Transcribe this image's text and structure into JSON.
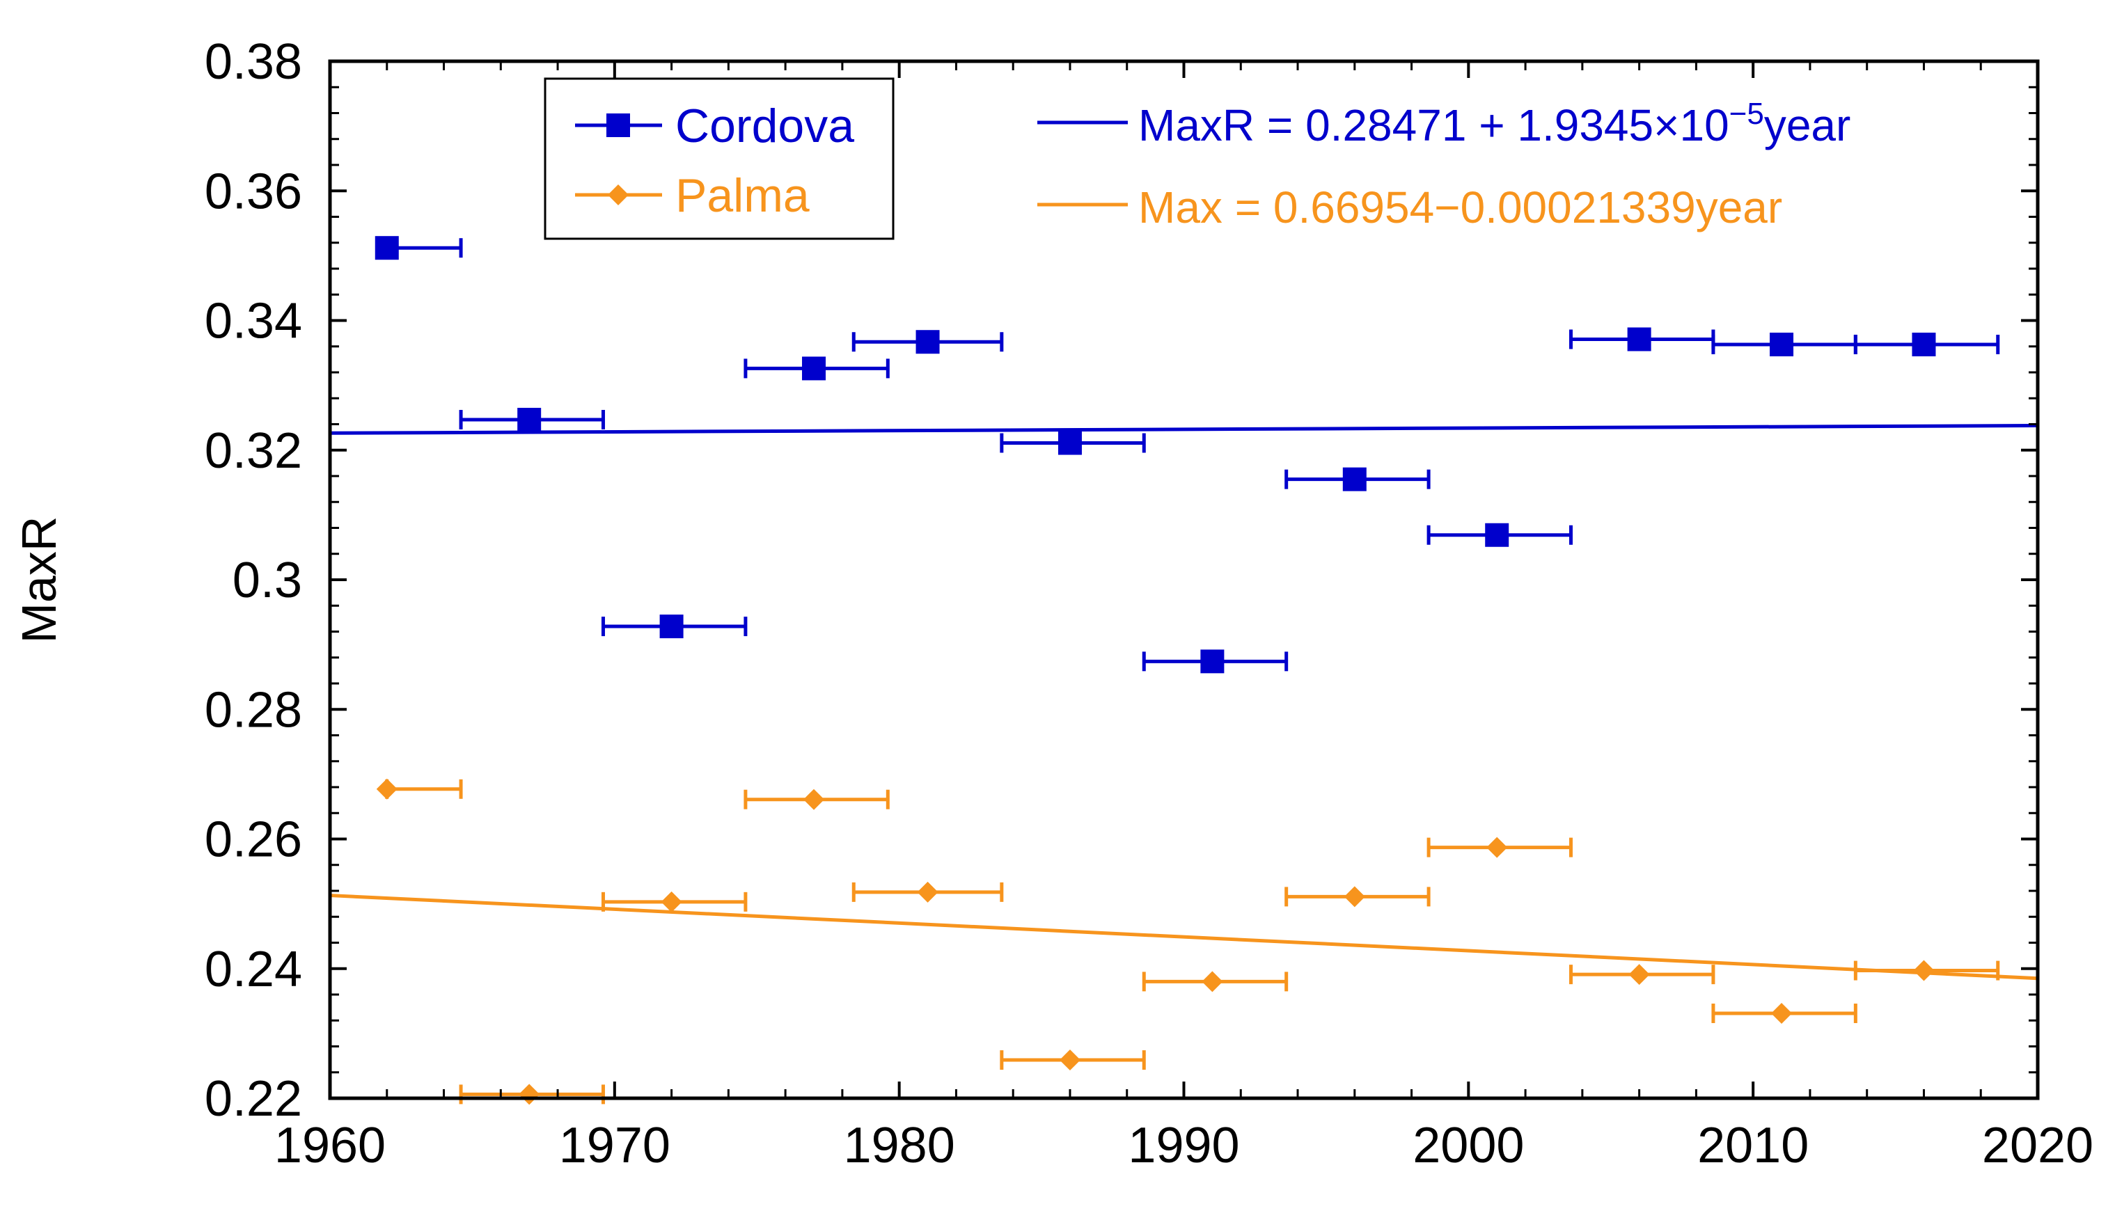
{
  "chart_data": {
    "type": "scatter",
    "title": "",
    "xlabel": "",
    "ylabel": "MaxR",
    "xlim": [
      1960,
      2020
    ],
    "ylim": [
      0.22,
      0.38
    ],
    "x_ticks": [
      1960,
      1970,
      1980,
      1990,
      2000,
      2010,
      2020
    ],
    "x_tick_labels": [
      "1960",
      "1970",
      "1980",
      "1990",
      "2000",
      "2010",
      "2020"
    ],
    "y_ticks": [
      0.22,
      0.24,
      0.26,
      0.28,
      0.3,
      0.32,
      0.34,
      0.36,
      0.38
    ],
    "y_tick_labels": [
      "0.22",
      "0.24",
      "0.26",
      "0.28",
      "0.3",
      "0.32",
      "0.34",
      "0.36",
      "0.38"
    ],
    "x_minor_step": 2,
    "y_minor_step": 0.004,
    "grid": false,
    "legend_position": "top-left",
    "series": [
      {
        "name": "Cordova",
        "color": "#0000cc",
        "marker": "square",
        "x": [
          1962,
          1967,
          1972,
          1977,
          1981,
          1986,
          1991,
          1996,
          2001,
          2006,
          2011,
          2016
        ],
        "y": [
          0.3512,
          0.3247,
          0.2928,
          0.3326,
          0.3367,
          0.3211,
          0.2874,
          0.3155,
          0.3069,
          0.3371,
          0.3363,
          0.3363
        ],
        "xerr_low": [
          1962,
          1964.6,
          1969.6,
          1974.6,
          1978.4,
          1983.6,
          1988.6,
          1993.6,
          1998.6,
          2003.6,
          2008.6,
          2013.6
        ],
        "xerr_high": [
          1964.6,
          1969.6,
          1974.6,
          1979.6,
          1983.6,
          1988.6,
          1993.6,
          1998.6,
          2003.6,
          2008.6,
          2013.6,
          2018.6
        ],
        "fit_label": "MaxR = 0.28471 + 1.9345×10",
        "fit_exponent": "−5",
        "fit_suffix": "year",
        "fit_intercept": 0.28471,
        "fit_slope": 1.9345e-05
      },
      {
        "name": "Palma",
        "color": "#f7941d",
        "marker": "diamond",
        "x": [
          1962,
          1967,
          1972,
          1977,
          1981,
          1986,
          1991,
          1996,
          2001,
          2006,
          2011,
          2016
        ],
        "y": [
          0.2677,
          0.2206,
          0.2503,
          0.2661,
          0.2518,
          0.2259,
          0.238,
          0.2511,
          0.2587,
          0.2391,
          0.2331,
          0.2397
        ],
        "xerr_low": [
          1962,
          1964.6,
          1969.6,
          1974.6,
          1978.4,
          1983.6,
          1988.6,
          1993.6,
          1998.6,
          2003.6,
          2008.6,
          2013.6
        ],
        "xerr_high": [
          1964.6,
          1969.6,
          1974.6,
          1979.6,
          1983.6,
          1988.6,
          1993.6,
          1998.6,
          2003.6,
          2008.6,
          2013.6,
          2018.6
        ],
        "fit_label": "Max = 0.66954−0.00021339year",
        "fit_exponent": "",
        "fit_suffix": "",
        "fit_intercept": 0.66954,
        "fit_slope": -0.00021339
      }
    ]
  }
}
